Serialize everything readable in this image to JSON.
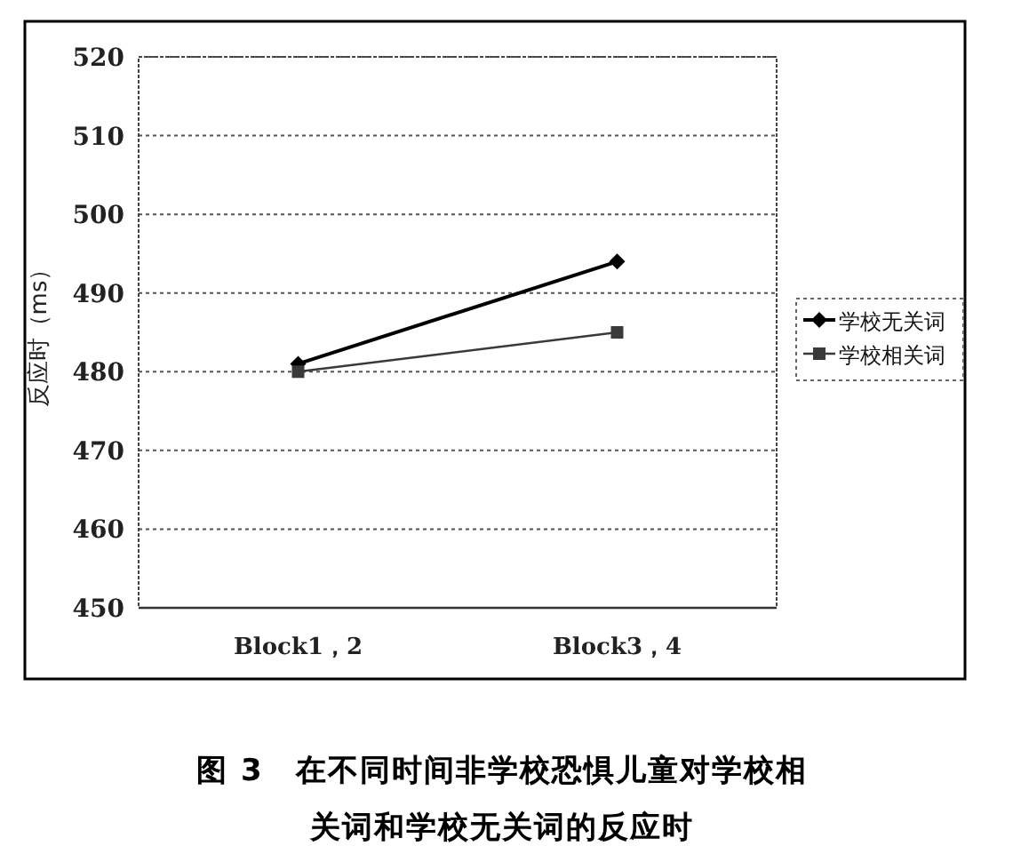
{
  "chart_data": {
    "type": "line",
    "title": "图 3　在不同时间非学校恐惧儿童对学校相关词和学校无关词的反应时",
    "ylabel": "反应时（ms）",
    "categories": [
      "Block1，2",
      "Block3，4"
    ],
    "series": [
      {
        "name": "学校无关词",
        "color": "#000000",
        "values": [
          481,
          494
        ],
        "marker": "diamond"
      },
      {
        "name": "学校相关词",
        "color": "#3a3a3a",
        "values": [
          480,
          485
        ],
        "marker": "square"
      }
    ],
    "ylim": [
      450,
      520
    ],
    "yticks": [
      450,
      460,
      470,
      480,
      490,
      500,
      510,
      520
    ],
    "grid": "y",
    "legend": "right"
  }
}
